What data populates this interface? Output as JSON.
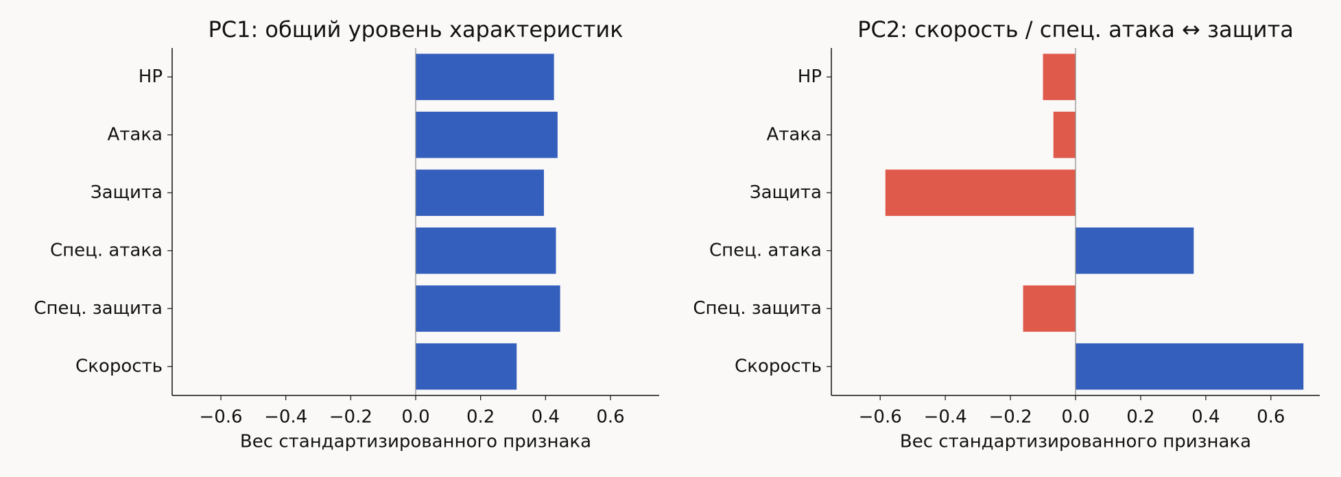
{
  "chart_data": [
    {
      "type": "bar",
      "orientation": "horizontal",
      "title": "PC1: общий уровень характеристик",
      "xlabel": "Вес стандартизированного признака",
      "categories": [
        "HP",
        "Атака",
        "Защита",
        "Спец. атака",
        "Спец. защита",
        "Скорость"
      ],
      "values": [
        0.426,
        0.437,
        0.395,
        0.432,
        0.445,
        0.311
      ],
      "xlim": [
        -0.75,
        0.75
      ],
      "xticks": [
        {
          "value": -0.6,
          "label": "−0.6"
        },
        {
          "value": -0.4,
          "label": "−0.4"
        },
        {
          "value": -0.2,
          "label": "−0.2"
        },
        {
          "value": 0,
          "label": "0.0"
        },
        0.2,
        0.4,
        0.6
      ],
      "positive_color": "#355fbd",
      "negative_color": "#e05a4b"
    },
    {
      "type": "bar",
      "orientation": "horizontal",
      "title": "PC2: скорость / спец. атака ↔ защита",
      "xlabel": "Вес стандартизированного признака",
      "categories": [
        "HP",
        "Атака",
        "Защита",
        "Спец. атака",
        "Спец. защита",
        "Скорость"
      ],
      "values": [
        -0.1,
        -0.068,
        -0.584,
        0.363,
        -0.161,
        0.7
      ],
      "xlim": [
        -0.75,
        0.75
      ],
      "xticks": [
        {
          "value": -0.6,
          "label": "−0.6"
        },
        {
          "value": -0.4,
          "label": "−0.4"
        },
        {
          "value": -0.2,
          "label": "−0.2"
        },
        {
          "value": 0,
          "label": "0.0"
        },
        0.2,
        0.4,
        0.6
      ],
      "positive_color": "#355fbd",
      "negative_color": "#e05a4b"
    }
  ]
}
